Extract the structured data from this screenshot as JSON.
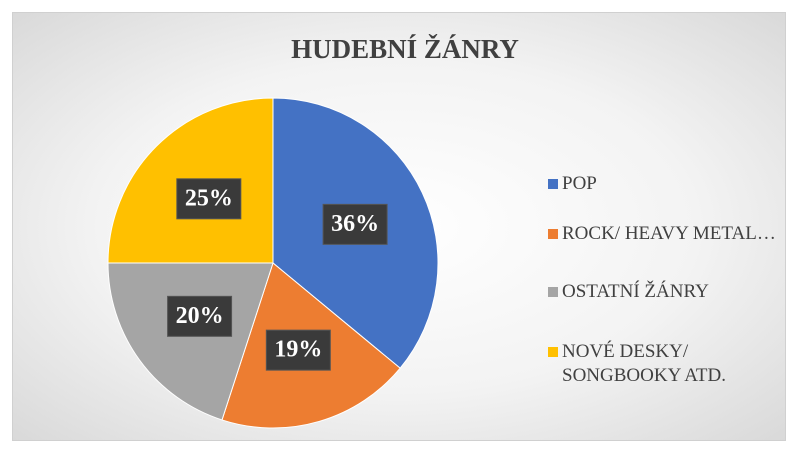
{
  "chart_data": {
    "type": "pie",
    "title": "HUDEBNÍ ŽÁNRY",
    "categories": [
      "POP",
      "ROCK/ HEAVY METAL…",
      "OSTATNÍ ŽÁNRY",
      "NOVÉ DESKY/ SONGBOOKY ATD."
    ],
    "values": [
      36,
      19,
      20,
      25
    ],
    "value_labels": [
      "36%",
      "19%",
      "20%",
      "25%"
    ],
    "colors": [
      "#4472c4",
      "#ed7d31",
      "#a5a5a5",
      "#ffc000"
    ],
    "legend": "right"
  }
}
